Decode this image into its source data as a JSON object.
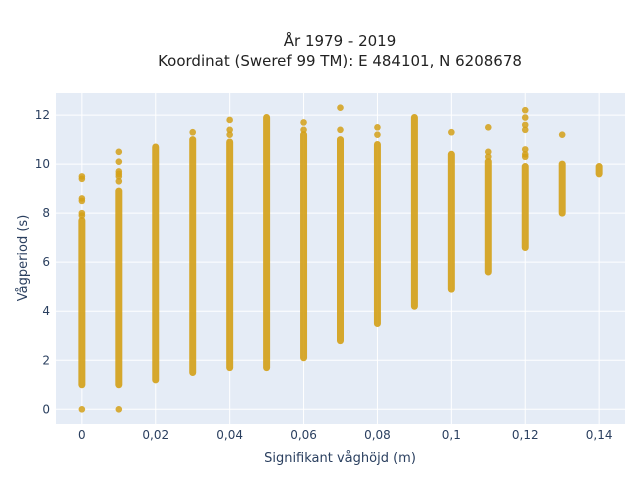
{
  "chart_data": {
    "type": "scatter",
    "title_line1": "År 1979 - 2019",
    "title_line2": "Koordinat (Sweref 99 TM): E 484101, N 6208678",
    "xlabel": "Signifikant våghöjd (m)",
    "ylabel": "Vågperiod (s)",
    "xlim": [
      -0.007,
      0.147
    ],
    "ylim": [
      -0.6,
      12.9
    ],
    "x_ticks": [
      {
        "value": 0,
        "label": "0"
      },
      {
        "value": 0.02,
        "label": "0,02"
      },
      {
        "value": 0.04,
        "label": "0,04"
      },
      {
        "value": 0.06,
        "label": "0,06"
      },
      {
        "value": 0.08,
        "label": "0,08"
      },
      {
        "value": 0.1,
        "label": "0,1"
      },
      {
        "value": 0.12,
        "label": "0,12"
      },
      {
        "value": 0.14,
        "label": "0,14"
      }
    ],
    "y_ticks": [
      {
        "value": 0,
        "label": "0"
      },
      {
        "value": 2,
        "label": "2"
      },
      {
        "value": 4,
        "label": "4"
      },
      {
        "value": 6,
        "label": "6"
      },
      {
        "value": 8,
        "label": "8"
      },
      {
        "value": 10,
        "label": "10"
      },
      {
        "value": 12,
        "label": "12"
      }
    ],
    "grid": true,
    "colors": {
      "marker": "#d4a017",
      "plot_background": "#e5ecf6",
      "grid": "#ffffff"
    },
    "columns": [
      {
        "x": 0,
        "y_min": 1.0,
        "y_max": 7.7,
        "outliers": [
          0,
          7.9,
          8.0,
          8.5,
          8.6,
          9.4,
          9.5
        ]
      },
      {
        "x": 0.01,
        "y_min": 1.0,
        "y_max": 8.9,
        "outliers": [
          0,
          9.3,
          9.5,
          9.6,
          9.7,
          10.1,
          10.5
        ]
      },
      {
        "x": 0.02,
        "y_min": 1.2,
        "y_max": 10.7,
        "outliers": []
      },
      {
        "x": 0.03,
        "y_min": 1.5,
        "y_max": 11.0,
        "outliers": [
          11.3
        ]
      },
      {
        "x": 0.04,
        "y_min": 1.7,
        "y_max": 10.9,
        "outliers": [
          11.2,
          11.4,
          11.8
        ]
      },
      {
        "x": 0.05,
        "y_min": 1.7,
        "y_max": 11.9,
        "outliers": []
      },
      {
        "x": 0.06,
        "y_min": 2.1,
        "y_max": 11.2,
        "outliers": [
          11.4,
          11.7
        ]
      },
      {
        "x": 0.07,
        "y_min": 2.8,
        "y_max": 11.0,
        "outliers": [
          11.4,
          12.3
        ]
      },
      {
        "x": 0.08,
        "y_min": 3.5,
        "y_max": 10.8,
        "outliers": [
          11.2,
          11.5
        ]
      },
      {
        "x": 0.09,
        "y_min": 4.2,
        "y_max": 11.9,
        "outliers": []
      },
      {
        "x": 0.1,
        "y_min": 4.9,
        "y_max": 10.4,
        "outliers": [
          11.3
        ]
      },
      {
        "x": 0.11,
        "y_min": 5.6,
        "y_max": 10.1,
        "outliers": [
          10.3,
          10.5,
          11.5
        ]
      },
      {
        "x": 0.12,
        "y_min": 6.6,
        "y_max": 9.9,
        "outliers": [
          10.3,
          10.4,
          10.6,
          11.4,
          11.6,
          11.9,
          12.2
        ]
      },
      {
        "x": 0.13,
        "y_min": 8.0,
        "y_max": 10.0,
        "outliers": [
          11.2
        ]
      },
      {
        "x": 0.14,
        "y_min": 9.6,
        "y_max": 9.9,
        "outliers": []
      }
    ]
  }
}
